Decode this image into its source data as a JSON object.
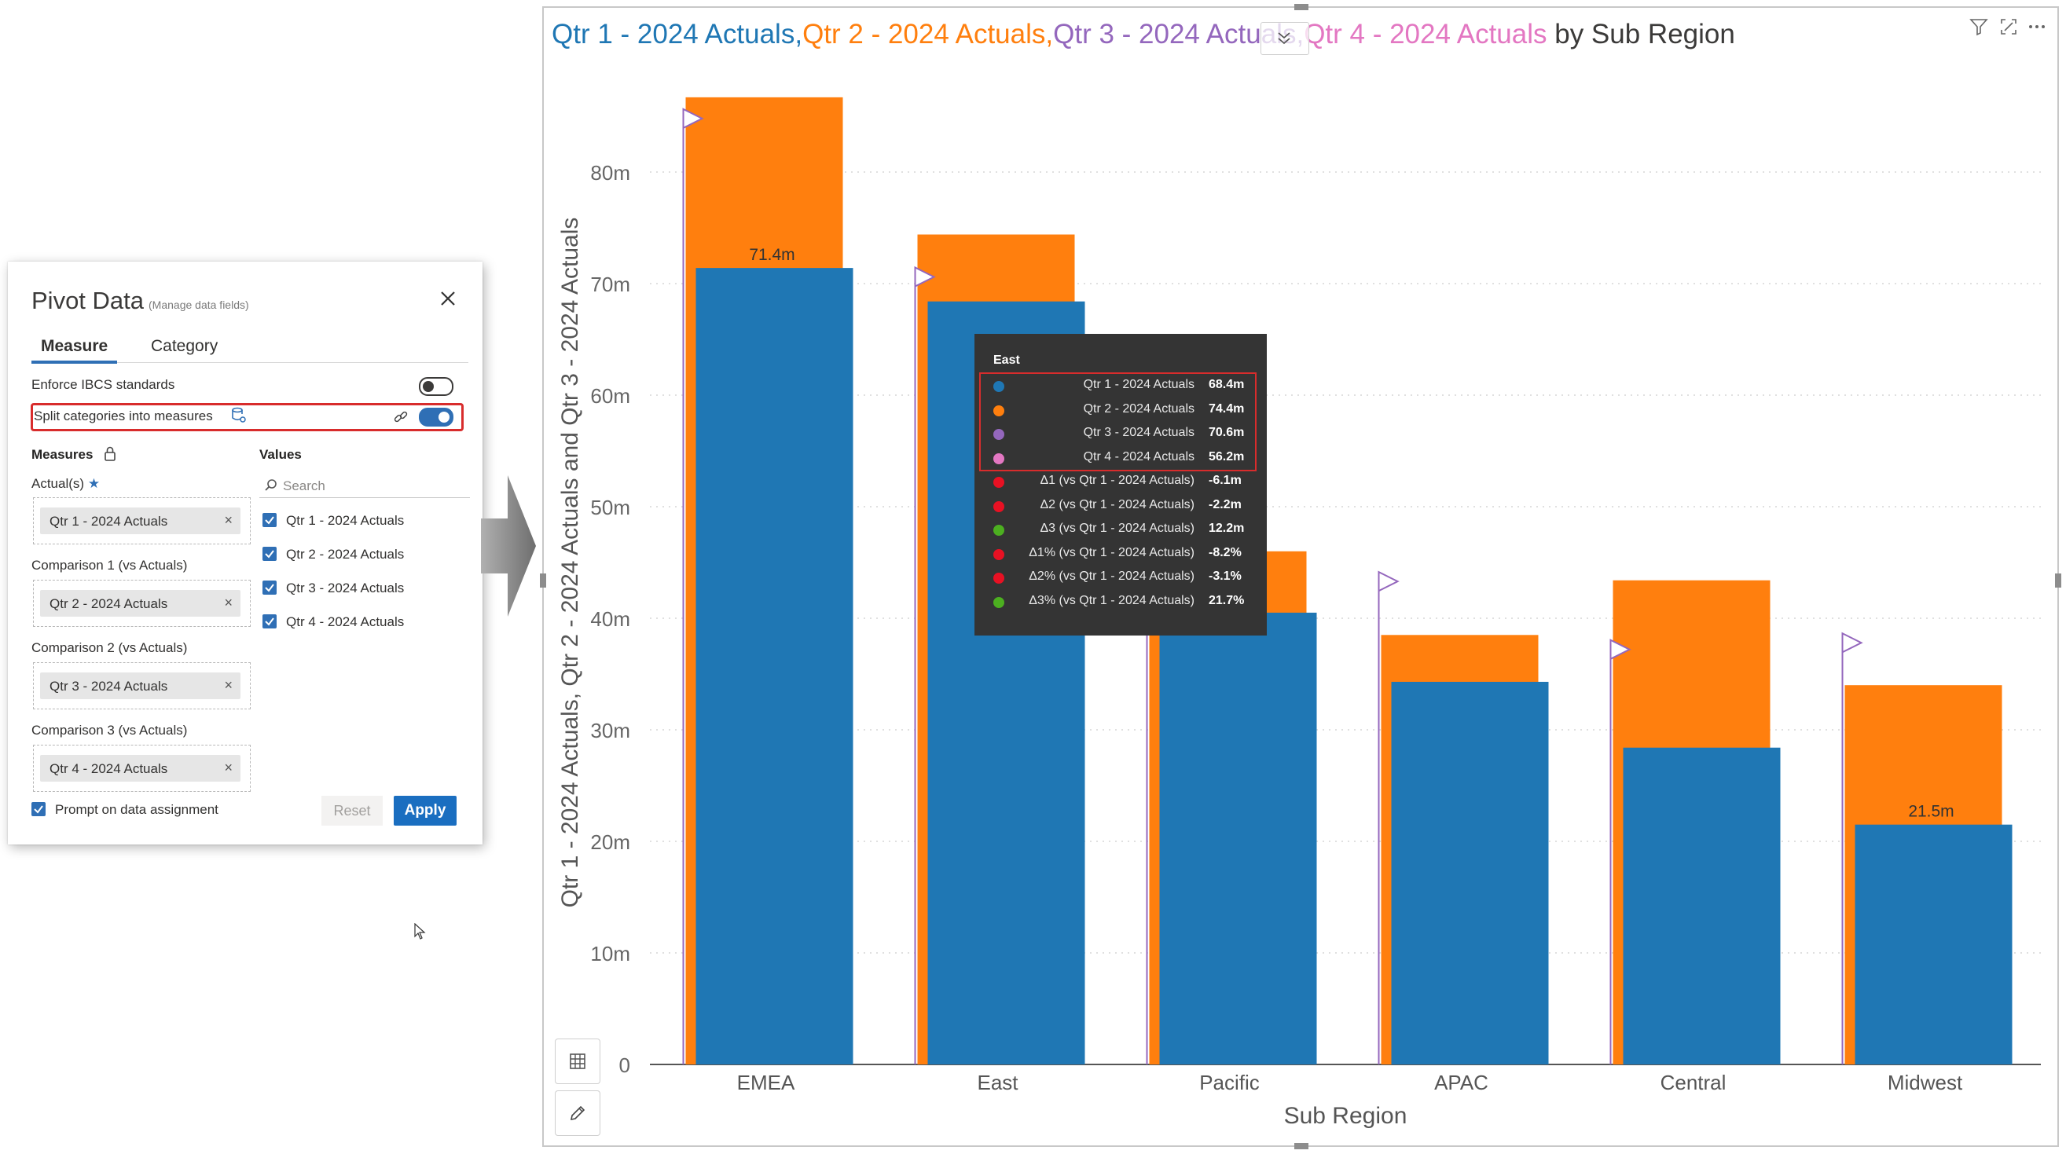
{
  "panel": {
    "title": "Pivot Data",
    "subtitle": "(Manage data fields)",
    "tabs": [
      {
        "label": "Measure"
      },
      {
        "label": "Category"
      }
    ],
    "enforce_ibcs_label": "Enforce IBCS standards",
    "split_categories_label": "Split categories into measures",
    "measures_heading": "Measures",
    "values_heading": "Values",
    "actuals_label": "Actual(s)",
    "required_marker": "★",
    "wells": [
      {
        "label": "",
        "chip": "Qtr 1 - 2024 Actuals"
      },
      {
        "label": "Comparison 1 (vs Actuals)",
        "chip": "Qtr 2 - 2024 Actuals"
      },
      {
        "label": "Comparison 2 (vs Actuals)",
        "chip": "Qtr 3 - 2024 Actuals"
      },
      {
        "label": "Comparison 3 (vs Actuals)",
        "chip": "Qtr 4 - 2024 Actuals"
      }
    ],
    "chip_remove": "×",
    "search_placeholder": "Search",
    "values": [
      {
        "label": "Qtr 1 - 2024 Actuals",
        "checked": true
      },
      {
        "label": "Qtr 2 - 2024 Actuals",
        "checked": true
      },
      {
        "label": "Qtr 3 - 2024 Actuals",
        "checked": true
      },
      {
        "label": "Qtr 4 - 2024 Actuals",
        "checked": true
      }
    ],
    "prompt_label": "Prompt on data assignment",
    "reset_label": "Reset",
    "apply_label": "Apply",
    "enforce_ibcs_on": false,
    "split_categories_on": true
  },
  "chart": {
    "title_parts": [
      "Qtr 1 - 2024 Actuals,",
      "Qtr 2 - 2024 Actuals,",
      "Qtr 3 - 2024 Actuals,",
      "Qtr 4 - 2024 Actuals",
      " by Sub Region"
    ],
    "colors": {
      "q1": "#1f77b4",
      "q2": "#ff7f0e",
      "q3": "#9467bd",
      "q4": "#e377c2"
    }
  },
  "chart_data": {
    "type": "bar",
    "categories": [
      "EMEA",
      "East",
      "Pacific",
      "APAC",
      "Central",
      "Midwest"
    ],
    "series": [
      {
        "name": "Qtr 1 - 2024 Actuals",
        "values": [
          71.4,
          68.4,
          40.5,
          34.3,
          28.4,
          21.5
        ]
      },
      {
        "name": "Qtr 2 - 2024 Actuals",
        "values": [
          86.7,
          74.4,
          46.0,
          38.5,
          43.4,
          34.0
        ]
      },
      {
        "name": "Qtr 3 - 2024 Actuals",
        "values": [
          84.8,
          70.6,
          40.0,
          43.3,
          37.2,
          37.8
        ]
      }
    ],
    "data_labels": [
      {
        "category": "EMEA",
        "text": "71.4m"
      },
      {
        "category": "Midwest",
        "text": "21.5m"
      }
    ],
    "xlabel": "Sub Region",
    "ylabel": "Qtr 1 - 2024 Actuals, Qtr 2 - 2024 Actuals and Qtr 3 - 2024 Actuals",
    "yticks": [
      "0",
      "10m",
      "20m",
      "30m",
      "40m",
      "50m",
      "60m",
      "70m",
      "80m"
    ],
    "ylim": [
      0,
      90
    ],
    "grid": true
  },
  "tooltip": {
    "title": "East",
    "rows": [
      {
        "label": "Qtr 1 - 2024 Actuals",
        "value": "68.4m",
        "color": "#1f77b4"
      },
      {
        "label": "Qtr 2 - 2024 Actuals",
        "value": "74.4m",
        "color": "#ff7f0e"
      },
      {
        "label": "Qtr 3 - 2024 Actuals",
        "value": "70.6m",
        "color": "#9467bd"
      },
      {
        "label": "Qtr 4 - 2024 Actuals",
        "value": "56.2m",
        "color": "#e377c2"
      },
      {
        "label": "Δ1 (vs Qtr 1 - 2024 Actuals)",
        "value": "-6.1m",
        "color": "#e81123"
      },
      {
        "label": "Δ2 (vs Qtr 1 - 2024 Actuals)",
        "value": "-2.2m",
        "color": "#e81123"
      },
      {
        "label": "Δ3 (vs Qtr 1 - 2024 Actuals)",
        "value": "12.2m",
        "color": "#4caf20"
      },
      {
        "label": "Δ1% (vs Qtr 1 - 2024 Actuals)",
        "value": "-8.2%",
        "color": "#e81123"
      },
      {
        "label": "Δ2% (vs Qtr 1 - 2024 Actuals)",
        "value": "-3.1%",
        "color": "#e81123"
      },
      {
        "label": "Δ3% (vs Qtr 1 - 2024 Actuals)",
        "value": "21.7%",
        "color": "#4caf20"
      }
    ]
  }
}
